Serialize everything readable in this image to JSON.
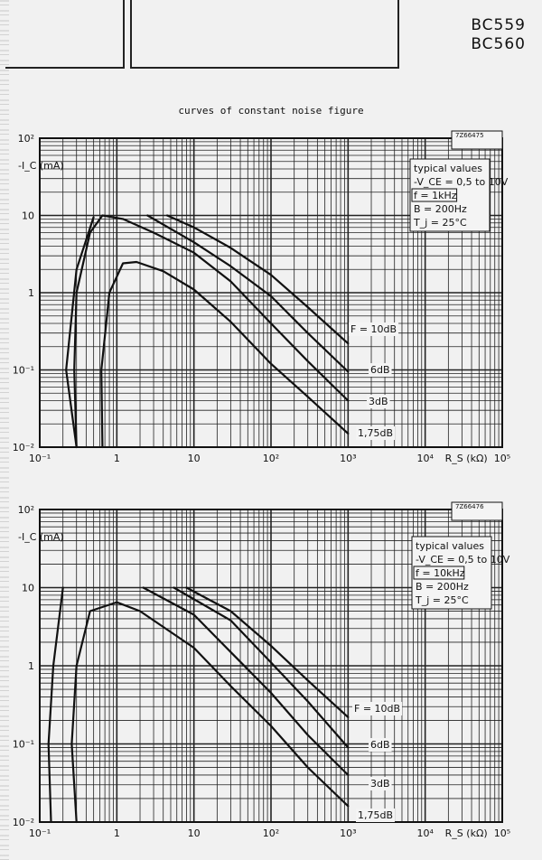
{
  "header": {
    "type_numbers": [
      "BC559",
      "BC560"
    ],
    "figure_title": "curves of constant noise figure"
  },
  "chart_data": [
    {
      "type": "line",
      "figure_code": "7Z66475",
      "x_scale": "log",
      "y_scale": "log",
      "xlim": [
        0.1,
        100000
      ],
      "ylim": [
        0.01,
        100
      ],
      "xlabel": "R_S (kΩ)",
      "ylabel": "-I_C (mA)",
      "x_ticks": [
        {
          "v": 0.1,
          "label": "10⁻¹"
        },
        {
          "v": 1,
          "label": "1"
        },
        {
          "v": 10,
          "label": "10"
        },
        {
          "v": 100,
          "label": "10²"
        },
        {
          "v": 1000,
          "label": "10³"
        },
        {
          "v": 10000,
          "label": "10⁴"
        },
        {
          "v": 100000,
          "label": "10⁵"
        }
      ],
      "y_ticks": [
        {
          "v": 100,
          "label": "10²"
        },
        {
          "v": 10,
          "label": "10"
        },
        {
          "v": 1,
          "label": "1"
        },
        {
          "v": 0.1,
          "label": "10⁻¹"
        },
        {
          "v": 0.01,
          "label": "10⁻²"
        }
      ],
      "info": [
        "typical values",
        "-V_CE = 0,5 to 10V",
        "f = 1kHz",
        "B = 200Hz",
        "T_j = 25°C"
      ],
      "series": [
        {
          "name": "F = 10dB",
          "points": [
            [
              4.5,
              10
            ],
            [
              10,
              7
            ],
            [
              30,
              3.8
            ],
            [
              100,
              1.7
            ],
            [
              300,
              0.65
            ],
            [
              1000,
              0.22
            ]
          ]
        },
        {
          "name": "6dB",
          "points": [
            [
              2.5,
              10
            ],
            [
              10,
              4.5
            ],
            [
              30,
              2.2
            ],
            [
              100,
              0.9
            ],
            [
              300,
              0.3
            ],
            [
              1000,
              0.095
            ]
          ]
        },
        {
          "name": "3dB",
          "points": [
            [
              0.3,
              0.01
            ],
            [
              0.28,
              0.1
            ],
            [
              0.3,
              1
            ],
            [
              0.45,
              6
            ],
            [
              0.65,
              10
            ],
            [
              1.2,
              9
            ],
            [
              3,
              6
            ],
            [
              10,
              3.3
            ],
            [
              30,
              1.4
            ],
            [
              100,
              0.4
            ],
            [
              300,
              0.13
            ],
            [
              1000,
              0.04
            ]
          ]
        },
        {
          "name": "1,75dB",
          "points": [
            [
              0.65,
              0.01
            ],
            [
              0.63,
              0.1
            ],
            [
              0.8,
              1
            ],
            [
              1.2,
              2.4
            ],
            [
              1.8,
              2.5
            ],
            [
              4,
              1.9
            ],
            [
              10,
              1.1
            ],
            [
              30,
              0.42
            ],
            [
              100,
              0.12
            ],
            [
              300,
              0.045
            ],
            [
              1000,
              0.015
            ]
          ]
        },
        {
          "name": "",
          "points": [
            [
              0.3,
              0.01
            ],
            [
              0.22,
              0.1
            ],
            [
              0.3,
              2
            ],
            [
              0.5,
              9.5
            ]
          ]
        }
      ]
    },
    {
      "type": "line",
      "figure_code": "7Z66476",
      "x_scale": "log",
      "y_scale": "log",
      "xlim": [
        0.1,
        100000
      ],
      "ylim": [
        0.01,
        100
      ],
      "xlabel": "R_S (kΩ)",
      "ylabel": "-I_C (mA)",
      "x_ticks": [
        {
          "v": 0.1,
          "label": "10⁻¹"
        },
        {
          "v": 1,
          "label": "1"
        },
        {
          "v": 10,
          "label": "10"
        },
        {
          "v": 100,
          "label": "10²"
        },
        {
          "v": 1000,
          "label": "10³"
        },
        {
          "v": 10000,
          "label": "10⁴"
        },
        {
          "v": 100000,
          "label": "10⁵"
        }
      ],
      "y_ticks": [
        {
          "v": 100,
          "label": "10²"
        },
        {
          "v": 10,
          "label": "10"
        },
        {
          "v": 1,
          "label": "1"
        },
        {
          "v": 0.1,
          "label": "10⁻¹"
        },
        {
          "v": 0.01,
          "label": "10⁻²"
        }
      ],
      "info": [
        "typical values",
        "-V_CE = 0,5 to 10V",
        "f = 10kHz",
        "B = 200Hz",
        "T_j = 25°C"
      ],
      "series": [
        {
          "name": "F = 10dB",
          "points": [
            [
              8,
              10
            ],
            [
              30,
              5
            ],
            [
              100,
              1.8
            ],
            [
              300,
              0.65
            ],
            [
              1000,
              0.22
            ]
          ]
        },
        {
          "name": "6dB",
          "points": [
            [
              5.5,
              10
            ],
            [
              30,
              3.8
            ],
            [
              100,
              1.1
            ],
            [
              300,
              0.35
            ],
            [
              1000,
              0.09
            ]
          ]
        },
        {
          "name": "3dB",
          "points": [
            [
              2.2,
              10
            ],
            [
              10,
              4.5
            ],
            [
              30,
              1.5
            ],
            [
              100,
              0.45
            ],
            [
              300,
              0.13
            ],
            [
              1000,
              0.04
            ]
          ]
        },
        {
          "name": "1,75dB",
          "points": [
            [
              0.3,
              0.01
            ],
            [
              0.26,
              0.1
            ],
            [
              0.3,
              1
            ],
            [
              0.45,
              5
            ],
            [
              1,
              6.5
            ],
            [
              2,
              5
            ],
            [
              10,
              1.7
            ],
            [
              30,
              0.55
            ],
            [
              100,
              0.17
            ],
            [
              300,
              0.05
            ],
            [
              1000,
              0.016
            ]
          ]
        },
        {
          "name": "",
          "points": [
            [
              0.14,
              0.01
            ],
            [
              0.13,
              0.1
            ],
            [
              0.15,
              1
            ],
            [
              0.2,
              10
            ]
          ]
        },
        {
          "name": "",
          "points": [
            [
              0.9,
              0.01
            ]
          ]
        }
      ]
    }
  ]
}
